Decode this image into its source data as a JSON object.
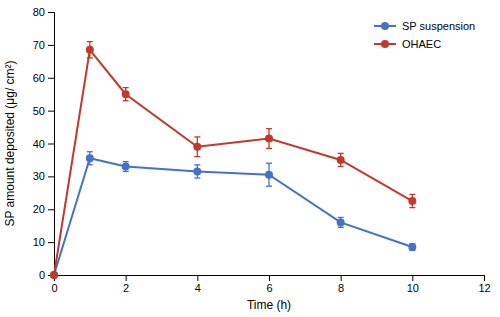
{
  "chart_data": {
    "type": "line",
    "xlabel": "Time (h)",
    "ylabel": "SP amount deposited (μg/ cm²)",
    "x": [
      0,
      1,
      2,
      4,
      6,
      8,
      10
    ],
    "series": [
      {
        "name": "SP suspension",
        "color": "#4472c4",
        "marker": "circle",
        "values": [
          0,
          35.5,
          33.0,
          31.5,
          30.5,
          16.0,
          8.5
        ],
        "errors": [
          0,
          2.0,
          1.5,
          2.0,
          3.5,
          1.5,
          1.0
        ]
      },
      {
        "name": "OHAEC",
        "color": "#c0392b",
        "marker": "circle",
        "values": [
          0,
          68.5,
          55.0,
          39.0,
          41.5,
          35.0,
          22.5
        ],
        "errors": [
          0,
          2.5,
          2.0,
          3.0,
          3.0,
          2.0,
          2.0
        ]
      }
    ],
    "xlim": [
      0,
      12
    ],
    "ylim": [
      0,
      80
    ],
    "xticks": [
      0,
      2,
      4,
      6,
      8,
      10,
      12
    ],
    "yticks": [
      0,
      10,
      20,
      30,
      40,
      50,
      60,
      70,
      80
    ],
    "grid": false,
    "legend": "upper right"
  }
}
